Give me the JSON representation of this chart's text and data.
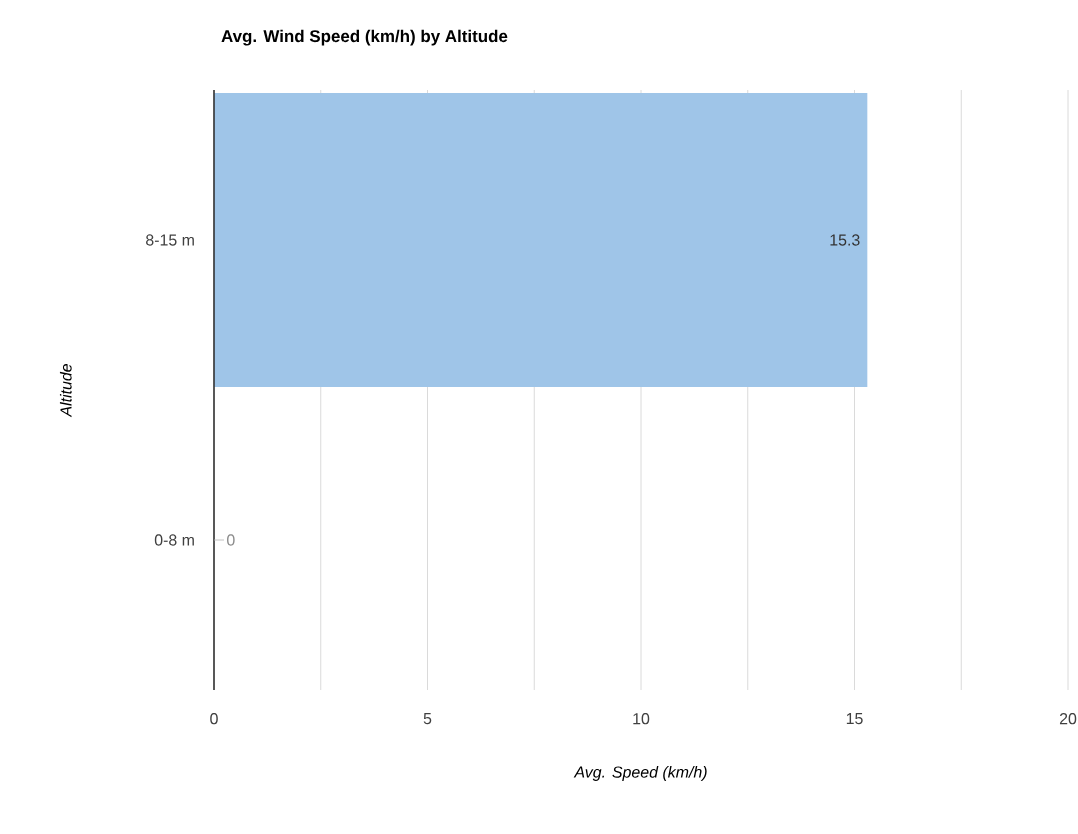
{
  "chart_data": {
    "type": "bar",
    "orientation": "horizontal",
    "title": "Avg. Wind Speed (km/h) by Altitude",
    "xlabel": "Avg. Speed (km/h)",
    "ylabel": "Altitude",
    "categories": [
      "8-15 m",
      "0-8 m"
    ],
    "values": [
      15.3,
      0
    ],
    "color": "#9fc5e8",
    "data_labels": true,
    "xlim": [
      0,
      20
    ],
    "xticks": [
      0,
      {
        "value": 2.5,
        "label": null
      },
      5,
      {
        "value": 7.5,
        "label": null
      },
      10,
      {
        "value": 12.5,
        "label": null
      },
      15,
      {
        "value": 17.5,
        "label": null
      },
      20
    ],
    "grid": "x"
  }
}
